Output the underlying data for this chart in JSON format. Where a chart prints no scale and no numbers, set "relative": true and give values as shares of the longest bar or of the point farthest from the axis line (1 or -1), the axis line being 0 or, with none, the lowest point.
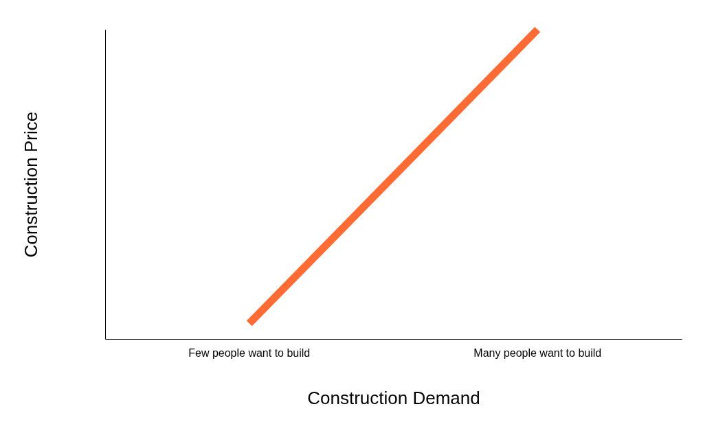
{
  "chart_data": {
    "type": "line",
    "xlabel": "Construction Demand",
    "ylabel": "Construction Price",
    "categories": [
      "Few people want to build",
      "Many people want to build"
    ],
    "relative": true,
    "grid": false,
    "series": [
      {
        "color": "#ff6b35",
        "values": [
          0.05,
          1
        ]
      }
    ]
  }
}
